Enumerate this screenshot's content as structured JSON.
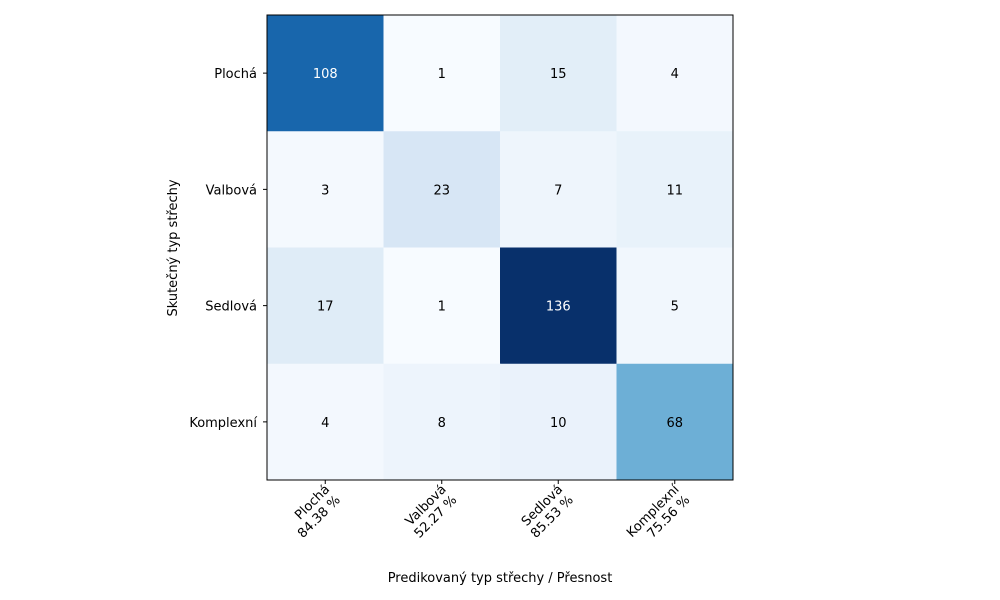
{
  "chart_data": {
    "type": "heatmap",
    "title": "",
    "xlabel": "Predikovaný typ střechy / Přesnost",
    "ylabel": "Skutečný typ střechy",
    "rows": [
      "Plochá",
      "Valbová",
      "Sedlová",
      "Komplexní"
    ],
    "columns": [
      "Plochá",
      "Valbová",
      "Sedlová",
      "Komplexní"
    ],
    "column_accuracy": [
      "84.38 %",
      "52.27 %",
      "85.53 %",
      "75.56 %"
    ],
    "values": [
      [
        108,
        1,
        15,
        4
      ],
      [
        3,
        23,
        7,
        11
      ],
      [
        17,
        1,
        136,
        5
      ],
      [
        4,
        8,
        10,
        68
      ]
    ],
    "colormap": "Blues",
    "grid": false
  }
}
